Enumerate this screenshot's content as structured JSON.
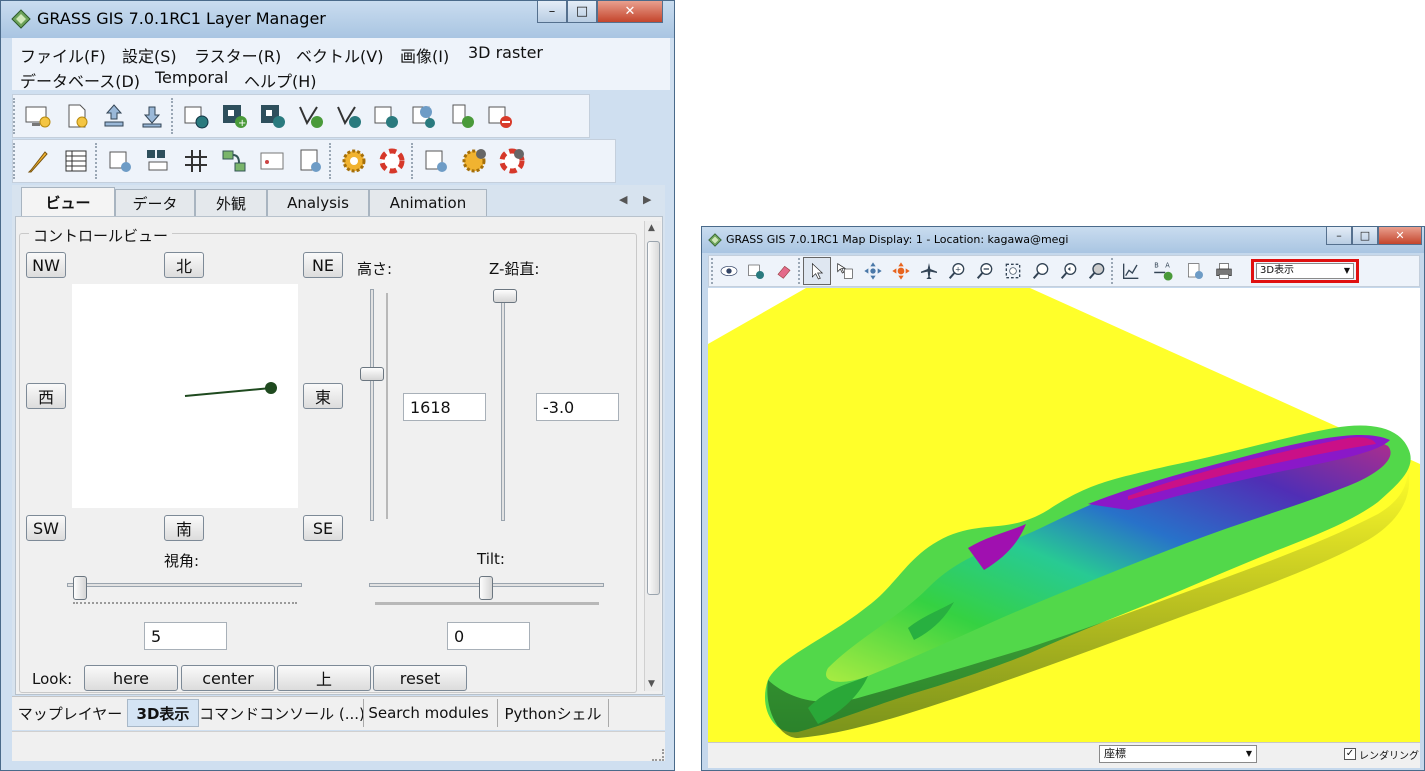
{
  "layer_manager": {
    "title": "GRASS GIS 7.0.1RC1 Layer Manager",
    "window_controls": {
      "minimize": "–",
      "maximize": "□",
      "close": "✕"
    },
    "menu": {
      "row1": [
        "ファイル(F)",
        "設定(S)",
        "ラスター(R)",
        "ベクトル(V)",
        "画像(I)",
        "3D raster"
      ],
      "row2": [
        "データベース(D)",
        "Temporal",
        "ヘルプ(H)"
      ]
    },
    "toolbar_icons_row1": [
      "display-new-icon",
      "workspace-new-icon",
      "workspace-open-icon",
      "workspace-save-icon",
      "add-raster-icon",
      "add-raster-multi-icon",
      "add-raster-misc-icon",
      "add-vector-icon",
      "add-vector-misc-icon",
      "add-overlay-icon",
      "add-web-icon",
      "add-group-icon",
      "remove-layer-icon"
    ],
    "toolbar_icons_row2": [
      "edit-vector-icon",
      "attribute-table-icon",
      "georectify-icon",
      "histogram-icon",
      "grid-icon",
      "modeler-icon",
      "composer-icon",
      "script-icon",
      "settings-icon",
      "help-icon",
      "mapcalc-icon",
      "settings2-icon",
      "help2-icon"
    ],
    "tabs": [
      "ビュー",
      "データ",
      "外観",
      "Analysis",
      "Animation"
    ],
    "active_tab": "ビュー",
    "control_view": {
      "group_label": "コントロールビュー",
      "directions": {
        "nw": "NW",
        "n": "北",
        "ne": "NE",
        "w": "西",
        "e": "東",
        "sw": "SW",
        "s": "南",
        "se": "SE"
      },
      "height_label": "高さ:",
      "height_value": "1618",
      "zexag_label": "Z-鉛直:",
      "zexag_value": "-3.0",
      "fov_label": "視角:",
      "fov_value": "5",
      "tilt_label": "Tilt:",
      "tilt_value": "0",
      "look_label": "Look:",
      "look_buttons": [
        "here",
        "center",
        "上",
        "reset"
      ]
    },
    "bottom_tabs": [
      "マップレイヤー",
      "3D表示",
      "コマンドコンソール (...)",
      "Search modules",
      "Pythonシェル"
    ],
    "active_bottom_tab": "3D表示"
  },
  "map_display": {
    "title": "GRASS GIS 7.0.1RC1 Map Display: 1  - Location: kagawa@megi",
    "window_controls": {
      "minimize": "–",
      "maximize": "□",
      "close": "✕"
    },
    "toolbar_icons": [
      "display-icon",
      "render-icon",
      "erase-icon",
      "pointer-icon",
      "query-icon",
      "pan-icon",
      "fly-icon",
      "airplane-icon",
      "zoom-in-icon",
      "zoom-out-icon",
      "zoom-extent-icon",
      "zoom-back-icon",
      "zoom-region-icon",
      "zoom-menu-icon",
      "analyze-icon",
      "overlay-icon",
      "save-image-icon",
      "print-icon"
    ],
    "mode_select": "3D表示",
    "status_select": "座標",
    "render_checkbox": {
      "label": "レンダリング",
      "checked": true
    }
  }
}
